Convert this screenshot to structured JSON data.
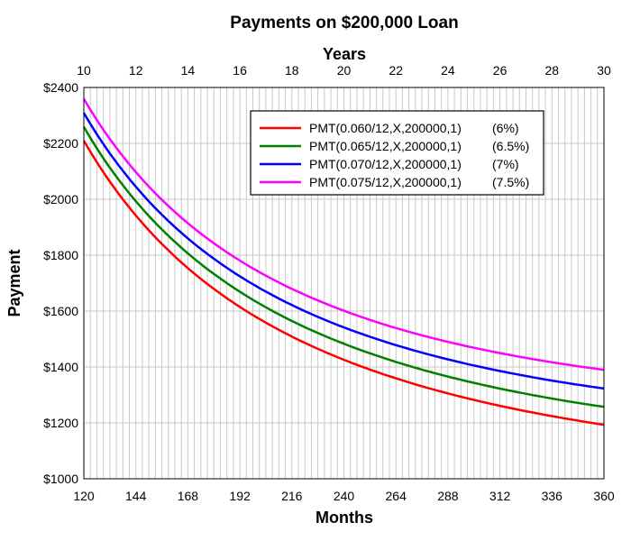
{
  "chart_data": {
    "type": "line",
    "title": "Payments on $200,000 Loan",
    "xlabel": "Months",
    "x2label": "Years",
    "ylabel": "Payment",
    "xlim": [
      120,
      360
    ],
    "ylim": [
      1000,
      2400
    ],
    "x_ticks": [
      "120",
      "144",
      "168",
      "192",
      "216",
      "240",
      "264",
      "288",
      "312",
      "336",
      "360"
    ],
    "x2_ticks": [
      "10",
      "12",
      "14",
      "16",
      "18",
      "20",
      "22",
      "24",
      "26",
      "28",
      "30"
    ],
    "y_ticks": [
      "$1000",
      "$1200",
      "$1400",
      "$1600",
      "$1800",
      "$2000",
      "$2200",
      "$2400"
    ],
    "grid": true,
    "legend_position": "top-right",
    "x": [
      120,
      144,
      168,
      192,
      216,
      240,
      264,
      288,
      312,
      336,
      360
    ],
    "series": [
      {
        "name": "PMT(0.060/12,X,200000,1)",
        "rate_label": "(6%)",
        "color": "#ff0000",
        "values": [
          2209,
          1916,
          1707,
          1551,
          1430,
          1334,
          1256,
          1191,
          1136,
          1090,
          1193
        ]
      },
      {
        "name": "PMT(0.065/12,X,200000,1)",
        "rate_label": "(6.5%)",
        "color": "#008000",
        "values": [
          2259,
          1967,
          1760,
          1604,
          1483,
          1388,
          1311,
          1247,
          1193,
          1147,
          1258
        ]
      },
      {
        "name": "PMT(0.070/12,X,200000,1)",
        "rate_label": "(7%)",
        "color": "#0000ff",
        "values": [
          2310,
          2019,
          1812,
          1657,
          1538,
          1442,
          1366,
          1302,
          1249,
          1205,
          1323
        ]
      },
      {
        "name": "PMT(0.075/12,X,200000,1)",
        "rate_label": "(7.5%)",
        "color": "#ff00ff",
        "values": [
          2361,
          2072,
          1866,
          1712,
          1593,
          1498,
          1422,
          1360,
          1307,
          1264,
          1391
        ]
      }
    ]
  }
}
